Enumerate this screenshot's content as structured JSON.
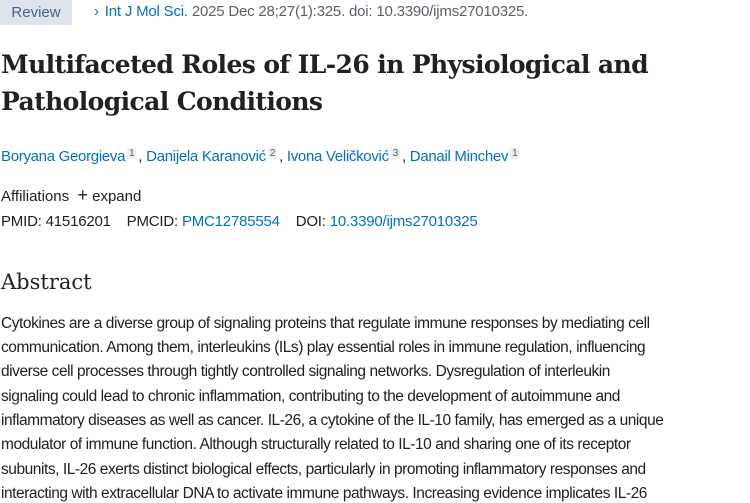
{
  "badge": "Review",
  "citation": {
    "journal": "Int J Mol Sci.",
    "details": "2025 Dec 28;27(1):325. doi: 10.3390/ijms27010325."
  },
  "title_lines": [
    "Multifaceted Roles of IL-26 in Physiological and",
    "Pathological Conditions"
  ],
  "authors": [
    {
      "name": "Boryana Georgieva",
      "aff": "1"
    },
    {
      "name": "Danijela Karanović",
      "aff": "2"
    },
    {
      "name": "Ivona Veličković",
      "aff": "3"
    },
    {
      "name": "Danail Minchev",
      "aff": "1"
    }
  ],
  "affiliations": {
    "label": "Affiliations",
    "expand": "expand"
  },
  "ids": {
    "pmid_label": "PMID:",
    "pmid": "41516201",
    "pmcid_label": "PMCID:",
    "pmcid": "PMC12785554",
    "doi_label": "DOI:",
    "doi": "10.3390/ijms27010325"
  },
  "abstract": {
    "heading": "Abstract",
    "lines": [
      "Cytokines are a diverse group of signaling proteins that regulate immune responses by mediating cell",
      "communication. Among them, interleukins (ILs) play essential roles in immune regulation, influencing",
      "diverse cell processes through tightly controlled signaling networks. Dysregulation of interleukin",
      "signaling could lead to chronic inflammation, contributing to the development of autoimmune and",
      "inflammatory diseases as well as cancer. IL-26, a cytokine of the IL-10 family, has emerged as a unique",
      "modulator of immune function. Although structurally related to IL-10 and sharing one of its receptor",
      "subunits, IL-26 exerts distinct biological effects, particularly in promoting inflammatory responses and",
      "interacting with extracellular DNA to activate immune pathways. Increasing evidence implicates IL-26"
    ]
  }
}
